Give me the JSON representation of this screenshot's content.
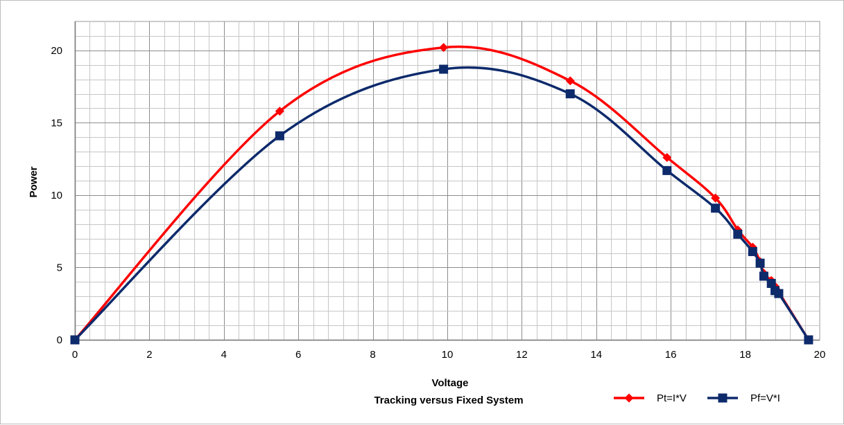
{
  "chart_data": {
    "type": "line",
    "title": "",
    "xlabel": "Voltage",
    "caption": "Tracking  versus Fixed System",
    "ylabel": "Power",
    "xlim": [
      0,
      20
    ],
    "ylim": [
      0,
      22
    ],
    "x_ticks": [
      "0",
      "2",
      "4",
      "6",
      "8",
      "10",
      "12",
      "14",
      "16",
      "18",
      "20"
    ],
    "y_ticks": [
      "0",
      "5",
      "10",
      "15",
      "20"
    ],
    "x_tick_values": [
      0,
      2,
      4,
      6,
      8,
      10,
      12,
      14,
      16,
      18,
      20
    ],
    "y_tick_values": [
      0,
      5,
      10,
      15,
      20
    ],
    "grid": true,
    "grid_minor_x_step": 0.4,
    "grid_minor_y_step": 1,
    "legend_position": "bottom-right",
    "series": [
      {
        "name": "Pt=I*V",
        "color": "#ff0000",
        "marker": "diamond",
        "x": [
          0,
          5.5,
          9.9,
          13.3,
          15.9,
          17.2,
          17.8,
          18.2,
          18.4,
          18.5,
          18.7,
          18.8,
          18.9,
          19.7
        ],
        "y": [
          0,
          15.8,
          20.2,
          17.9,
          12.6,
          9.8,
          7.6,
          6.4,
          5.4,
          4.6,
          4.1,
          3.7,
          3.3,
          0
        ]
      },
      {
        "name": "Pf=V*I",
        "color": "#0d2a6b",
        "marker": "square",
        "x": [
          0,
          5.5,
          9.9,
          13.3,
          15.9,
          17.2,
          17.8,
          18.2,
          18.4,
          18.5,
          18.7,
          18.8,
          18.9,
          19.7
        ],
        "y": [
          0,
          14.1,
          18.7,
          17.0,
          11.7,
          9.1,
          7.3,
          6.1,
          5.3,
          4.4,
          3.9,
          3.4,
          3.2,
          0
        ]
      }
    ]
  }
}
